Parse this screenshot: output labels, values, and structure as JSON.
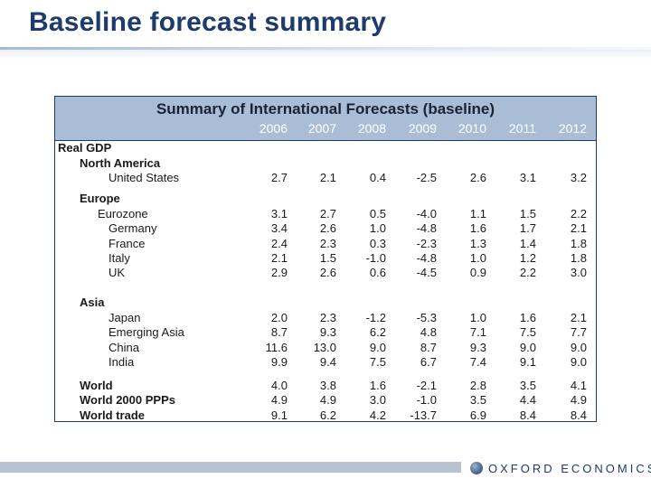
{
  "slide": {
    "title": "Baseline forecast summary"
  },
  "table": {
    "title": "Summary of International Forecasts (baseline)",
    "years": [
      "2006",
      "2007",
      "2008",
      "2009",
      "2010",
      "2011",
      "2012"
    ],
    "rows": [
      {
        "label": "Real GDP",
        "level": 0,
        "bold": true,
        "values": []
      },
      {
        "label": "North America",
        "level": 1,
        "bold": true,
        "values": []
      },
      {
        "label": "United States",
        "level": 3,
        "bold": false,
        "values": [
          "2.7",
          "2.1",
          "0.4",
          "-2.5",
          "2.6",
          "3.1",
          "3.2"
        ]
      },
      {
        "label": "Europe",
        "level": 1,
        "bold": true,
        "values": []
      },
      {
        "label": "Eurozone",
        "level": 2,
        "bold": false,
        "values": [
          "3.1",
          "2.7",
          "0.5",
          "-4.0",
          "1.1",
          "1.5",
          "2.2"
        ]
      },
      {
        "label": "Germany",
        "level": 3,
        "bold": false,
        "values": [
          "3.4",
          "2.6",
          "1.0",
          "-4.8",
          "1.6",
          "1.7",
          "2.1"
        ]
      },
      {
        "label": "France",
        "level": 3,
        "bold": false,
        "values": [
          "2.4",
          "2.3",
          "0.3",
          "-2.3",
          "1.3",
          "1.4",
          "1.8"
        ]
      },
      {
        "label": "Italy",
        "level": 3,
        "bold": false,
        "values": [
          "2.1",
          "1.5",
          "-1.0",
          "-4.8",
          "1.0",
          "1.2",
          "1.8"
        ]
      },
      {
        "label": "UK",
        "level": 3,
        "bold": false,
        "values": [
          "2.9",
          "2.6",
          "0.6",
          "-4.5",
          "0.9",
          "2.2",
          "3.0"
        ]
      },
      {
        "label": "Asia",
        "level": 1,
        "bold": true,
        "values": []
      },
      {
        "label": "Japan",
        "level": 3,
        "bold": false,
        "values": [
          "2.0",
          "2.3",
          "-1.2",
          "-5.3",
          "1.0",
          "1.6",
          "2.1"
        ]
      },
      {
        "label": "Emerging Asia",
        "level": 3,
        "bold": false,
        "values": [
          "8.7",
          "9.3",
          "6.2",
          "4.8",
          "7.1",
          "7.5",
          "7.7"
        ]
      },
      {
        "label": "China",
        "level": 3,
        "bold": false,
        "values": [
          "11.6",
          "13.0",
          "9.0",
          "8.7",
          "9.3",
          "9.0",
          "9.0"
        ]
      },
      {
        "label": "India",
        "level": 3,
        "bold": false,
        "values": [
          "9.9",
          "9.4",
          "7.5",
          "6.7",
          "7.4",
          "9.1",
          "9.0"
        ]
      },
      {
        "label": "World",
        "level": 1,
        "bold": true,
        "values": [
          "4.0",
          "3.8",
          "1.6",
          "-2.1",
          "2.8",
          "3.5",
          "4.1"
        ]
      },
      {
        "label": "World 2000 PPPs",
        "level": 1,
        "bold": true,
        "values": [
          "4.9",
          "4.9",
          "3.0",
          "-1.0",
          "3.5",
          "4.4",
          "4.9"
        ]
      },
      {
        "label": "World trade",
        "level": 1,
        "bold": true,
        "values": [
          "9.1",
          "6.2",
          "4.2",
          "-13.7",
          "6.9",
          "8.4",
          "8.4"
        ]
      }
    ]
  },
  "footer": {
    "logo_text": "OXFORD ECONOMICS",
    "logo_icon": "globe-icon"
  }
}
